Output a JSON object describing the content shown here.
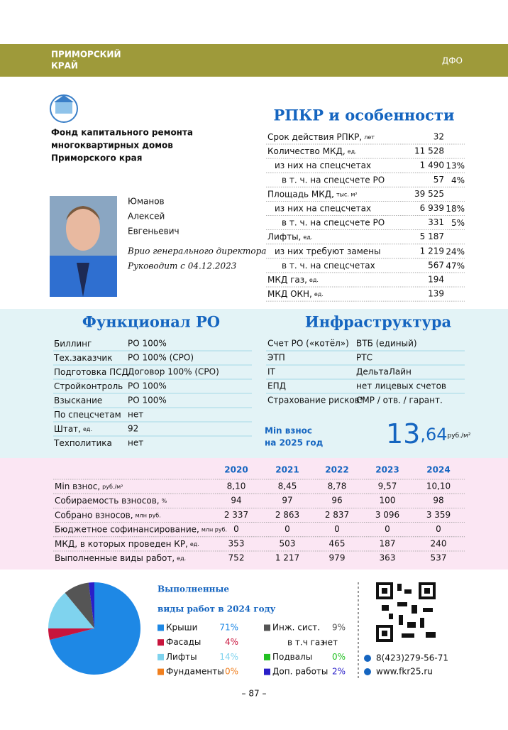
{
  "header": {
    "region_lines": [
      "ПРИМОРСКИЙ",
      "КРАЙ"
    ],
    "district": "ДФО"
  },
  "org": {
    "name_lines": [
      "Фонд капитального ремонта",
      "многоквартирных домов",
      "Приморского края"
    ],
    "head_lines": [
      "Юманов",
      "Алексей",
      "Евгеньевич"
    ],
    "role": "Врио генерального директора",
    "since": "Руководит с 04.12.2023"
  },
  "rpkr": {
    "title": "РПКР и особенности",
    "rows": [
      {
        "label": "Срок действия РПКР,",
        "unit": "лет",
        "value": "32"
      },
      {
        "label": "Количество МКД,",
        "unit": "ед.",
        "value": "11 528"
      },
      {
        "label": "из них на спецсчетах",
        "value": "1 490",
        "share": "13%"
      },
      {
        "label": "в т. ч. на спецсчете РО",
        "value": "57",
        "share": "4%"
      },
      {
        "label": "Площадь МКД,",
        "unit": "тыс. м²",
        "value": "39 525"
      },
      {
        "label": "из них на спецсчетах",
        "value": "6 939",
        "share": "18%"
      },
      {
        "label": "в т. ч. на спецсчете РО",
        "value": "331",
        "share": "5%"
      },
      {
        "label": "Лифты,",
        "unit": "ед.",
        "value": "5 187"
      },
      {
        "label": "из них требуют замены",
        "value": "1 219",
        "share": "24%"
      },
      {
        "label": "в т. ч. на спецсчетах",
        "value": "567",
        "share": "47%"
      },
      {
        "label": "МКД газ,",
        "unit": "ед.",
        "value": "194"
      },
      {
        "label": "МКД ОКН,",
        "unit": "ед.",
        "value": "139"
      }
    ]
  },
  "functional": {
    "title": "Функционал РО",
    "rows": [
      {
        "label": "Биллинг",
        "value": "РО 100%"
      },
      {
        "label": "Тех.заказчик",
        "value": "РО 100% (СРО)"
      },
      {
        "label": "Подготовка ПСД",
        "value": "Договор 100% (СРО)"
      },
      {
        "label": "Стройконтроль",
        "value": "РО 100%"
      },
      {
        "label": "Взыскание",
        "value": "РО 100%"
      },
      {
        "label": "По спецсчетам",
        "value": "нет"
      },
      {
        "label": "Штат,",
        "unit": "ед.",
        "value": "92"
      },
      {
        "label": "Техполитика",
        "value": "нет"
      }
    ]
  },
  "infrastructure": {
    "title": "Инфраструктура",
    "rows": [
      {
        "label": "Счет РО («котёл»)",
        "value": "ВТБ (единый)"
      },
      {
        "label": "ЭТП",
        "value": "РТС"
      },
      {
        "label": "IT",
        "value": "ДельтаЛайн"
      },
      {
        "label": "ЕПД",
        "value": "нет лицевых счетов"
      },
      {
        "label": "Страхование рисков*",
        "value": "СМР / отв. / гарант."
      }
    ],
    "min_fee": {
      "label_lines": [
        "Min взнос",
        "на 2025 год"
      ],
      "whole": "13",
      "fraction": ",64",
      "unit": "руб./м²"
    }
  },
  "stats": {
    "years": [
      "2020",
      "2021",
      "2022",
      "2023",
      "2024"
    ],
    "rows": [
      {
        "label": "Min взнос,",
        "unit": "руб./м²",
        "values": [
          "8,10",
          "8,45",
          "8,78",
          "9,57",
          "10,10"
        ]
      },
      {
        "label": "Собираемость взносов,",
        "unit": "%",
        "values": [
          "94",
          "97",
          "96",
          "100",
          "98"
        ]
      },
      {
        "label": "Собрано взносов,",
        "unit": "млн руб.",
        "values": [
          "2 337",
          "2 863",
          "2 837",
          "3 096",
          "3 359"
        ]
      },
      {
        "label": "Бюджетное софинансирование,",
        "unit": "млн руб.",
        "values": [
          "0",
          "0",
          "0",
          "0",
          "0"
        ]
      },
      {
        "label": "МКД, в которых проведен КР,",
        "unit": "ед.",
        "values": [
          "353",
          "503",
          "465",
          "187",
          "240"
        ]
      },
      {
        "label": "Выполненные виды работ,",
        "unit": "ед.",
        "values": [
          "752",
          "1 217",
          "979",
          "363",
          "537"
        ]
      }
    ]
  },
  "chart_data": {
    "type": "pie",
    "title_lines": [
      "Выполненные",
      "виды работ в 2024 году"
    ],
    "categories": [
      "Крыши",
      "Фасады",
      "Лифты",
      "Фундаменты",
      "Инж. сист.",
      "Подвалы",
      "Доп. работы"
    ],
    "values": [
      71,
      4,
      14,
      0,
      9,
      0,
      2
    ],
    "value_labels": [
      "71%",
      "4%",
      "14%",
      "0%",
      "9%",
      "0%",
      "2%"
    ],
    "colors": [
      "#1e88e5",
      "#c8143c",
      "#7fd3ee",
      "#f07f1e",
      "#555555",
      "#22c022",
      "#2a1fc8"
    ],
    "gas": {
      "label": "в т.ч газ",
      "value": "нет"
    }
  },
  "contacts": {
    "phone": "8(423)279-56-71",
    "site": "www.fkr25.ru"
  },
  "page_number": "– 87 –"
}
